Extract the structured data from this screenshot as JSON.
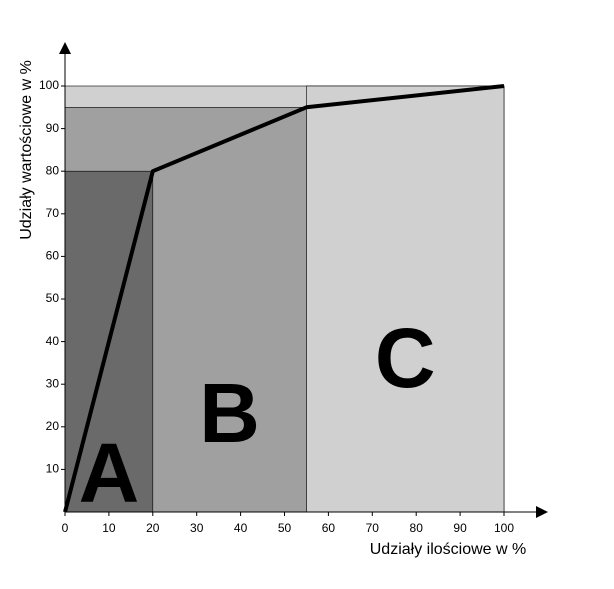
{
  "chart_data": {
    "type": "line",
    "x_label": "Udziały ilościowe w %",
    "y_label": "Udziały wartościowe w %",
    "x": [
      0,
      20,
      55,
      100
    ],
    "values": [
      0,
      80,
      95,
      100
    ],
    "color": "#000000",
    "zone_labels": [
      "A",
      "B",
      "C"
    ],
    "zone_colors": [
      "#6a6a6a",
      "#a0a0a0",
      "#d0d0d0"
    ],
    "xlim": [
      0,
      100
    ],
    "ylim": [
      0,
      100
    ],
    "xticks": [
      0,
      10,
      20,
      30,
      40,
      50,
      60,
      70,
      80,
      90,
      100
    ],
    "yticks": [
      10,
      20,
      30,
      40,
      50,
      60,
      70,
      80,
      90,
      100
    ]
  }
}
